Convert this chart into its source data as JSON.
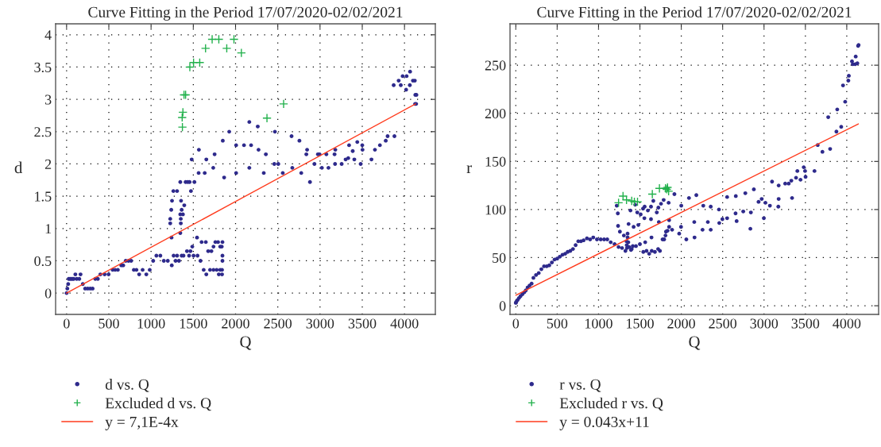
{
  "chart_data": [
    {
      "type": "scatter",
      "title": "Curve Fitting in the Period 17/07/2020-02/02/2021",
      "xlabel": "Q",
      "ylabel": "d",
      "xlim": [
        -130,
        4365
      ],
      "ylim": [
        -0.33,
        4.17
      ],
      "xticks": [
        0,
        500,
        1000,
        1500,
        2000,
        2500,
        3000,
        3500,
        4000
      ],
      "yticks": [
        0,
        0.5,
        1,
        1.5,
        2,
        2.5,
        3,
        3.5,
        4
      ],
      "grid": true,
      "legend": "bottom",
      "series": [
        {
          "name": "d vs. Q",
          "marker": "circle",
          "color": "#2e2a8c",
          "x": [
            0,
            9,
            19,
            25,
            40,
            55,
            70,
            85,
            104,
            120,
            150,
            165,
            192,
            220,
            250,
            280,
            308,
            340,
            370,
            400,
            450,
            497,
            545,
            575,
            607,
            648,
            670,
            700,
            733,
            764,
            796,
            827,
            859,
            900,
            944,
            984,
            1025,
            1063,
            1110,
            1151,
            1198,
            1245,
            1267,
            1290,
            1308,
            1330,
            1362,
            1384,
            1425,
            1450,
            1466,
            1488,
            1503,
            1550,
            1544,
            1585,
            1598,
            1648,
            1623,
            1654,
            1676,
            1714,
            1698,
            1739,
            1777,
            1739,
            1761,
            1793,
            1802,
            1818,
            1837,
            1818,
            1840,
            1840,
            1845,
            1845,
            1845,
            1227,
            1227,
            1239,
            1248,
            1264,
            1308,
            1242,
            1346,
            1352,
            1352,
            1346,
            1377,
            1362,
            1355,
            1393,
            1346,
            1409,
            1434,
            1456,
            1472,
            1513,
            1481,
            1563,
            1566,
            1635,
            1654,
            1736,
            1752,
            1849,
            1865,
            1925,
            2007,
            2007,
            2100,
            2163,
            2184,
            2163,
            2263,
            2272,
            2334,
            2359,
            2466,
            2459,
            2506,
            2559,
            2663,
            2672,
            2756,
            2778,
            2847,
            2838,
            2881,
            2934,
            2975,
            2994,
            3022,
            3075,
            3100,
            3172,
            3181,
            3178,
            3256,
            3303,
            3334,
            3344,
            3387,
            3406,
            3441,
            3481,
            3500,
            3503,
            3609,
            3650,
            3709,
            3778,
            3800,
            3881,
            3872,
            3931,
            3956,
            3978,
            4025,
            4019,
            4066,
            4063,
            4100,
            4122,
            4128,
            4141,
            4125,
            4138
          ],
          "values": [
            0,
            0.07,
            0.14,
            0.22,
            0.22,
            0.22,
            0.22,
            0.22,
            0.29,
            0.22,
            0.22,
            0.29,
            0.14,
            0.07,
            0.07,
            0.07,
            0.07,
            0.22,
            0.22,
            0.29,
            0.29,
            0.29,
            0.36,
            0.36,
            0.36,
            0.43,
            0.43,
            0.5,
            0.5,
            0.5,
            0.36,
            0.36,
            0.29,
            0.36,
            0.29,
            0.36,
            0.5,
            0.58,
            0.58,
            0.5,
            0.5,
            0.43,
            0.58,
            0.5,
            0.58,
            0.5,
            0.58,
            0.58,
            0.65,
            0.58,
            0.65,
            0.72,
            0.58,
            0.58,
            0.86,
            0.5,
            0.79,
            0.79,
            0.36,
            0.29,
            0.65,
            0.65,
            0.36,
            0.36,
            0.36,
            0.72,
            0.79,
            0.79,
            0.29,
            0.72,
            0.72,
            0.36,
            0.36,
            0.29,
            0.79,
            0.58,
            0.5,
            1.15,
            1.08,
            1.29,
            1.43,
            1.58,
            1.58,
            0.86,
            0.93,
            1.08,
            1.15,
            1.22,
            1.22,
            1.29,
            1.43,
            1.36,
            1.72,
            1.72,
            1.72,
            1.72,
            1.58,
            1.72,
            2.07,
            1.86,
            2.22,
            1.86,
            2.07,
            1.94,
            2.15,
            2.36,
            1.79,
            2.5,
            2.29,
            1.86,
            2.29,
            2.65,
            2.29,
            1.94,
            2.58,
            2.22,
            1.86,
            2.15,
            2.5,
            2.0,
            2.0,
            1.86,
            2.43,
            1.94,
            2.36,
            1.86,
            2.22,
            2.15,
            1.72,
            2.0,
            2.15,
            2.15,
            1.94,
            2.15,
            1.94,
            2.15,
            2.22,
            2.0,
            2.0,
            2.07,
            2.09,
            2.29,
            2.2,
            2.07,
            2.34,
            2.0,
            2.29,
            2.22,
            2.07,
            2.22,
            2.29,
            2.36,
            2.43,
            2.43,
            3.22,
            3.29,
            3.22,
            3.36,
            3.36,
            3.15,
            3.43,
            3.22,
            3.29,
            3.29,
            3.07,
            3.07,
            2.93,
            2.93
          ]
        },
        {
          "name": "Excluded d vs. Q",
          "marker": "cross",
          "color": "#22b14c",
          "x": [
            1371,
            1368,
            1377,
            1390,
            1409,
            1459,
            1503,
            1576,
            1645,
            1723,
            1802,
            1896,
            1981,
            2069,
            2372,
            2569
          ],
          "values": [
            2.57,
            2.72,
            2.8,
            3.07,
            3.07,
            3.5,
            3.57,
            3.57,
            3.79,
            3.93,
            3.93,
            3.79,
            3.93,
            3.72,
            2.71,
            2.93
          ]
        },
        {
          "name": "y = 7,1E-4x",
          "type": "line",
          "marker": "none",
          "color": "#ff3c1e",
          "x": [
            0,
            4131
          ],
          "values": [
            0,
            2.93
          ]
        }
      ]
    },
    {
      "type": "scatter",
      "title": "Curve Fitting in the Period 17/07/2020-02/02/2021",
      "xlabel": "Q",
      "ylabel": "r",
      "xlim": [
        -70,
        4385
      ],
      "ylim": [
        -9,
        293
      ],
      "xticks": [
        0,
        500,
        1000,
        1500,
        2000,
        2500,
        3000,
        3500,
        4000
      ],
      "yticks": [
        0,
        50,
        100,
        150,
        200,
        250
      ],
      "grid": true,
      "legend": "bottom",
      "series": [
        {
          "name": "r vs. Q",
          "marker": "circle",
          "color": "#2e2a8c",
          "x": [
            0,
            6,
            22,
            38,
            57,
            80,
            102,
            121,
            143,
            166,
            191,
            213,
            245,
            277,
            309,
            341,
            373,
            404,
            436,
            468,
            500,
            532,
            564,
            596,
            627,
            659,
            691,
            723,
            755,
            787,
            819,
            860,
            898,
            936,
            981,
            1026,
            1067,
            1105,
            1147,
            1194,
            1220,
            1233,
            1236,
            1258,
            1242,
            1284,
            1306,
            1325,
            1338,
            1351,
            1351,
            1360,
            1341,
            1344,
            1363,
            1370,
            1392,
            1401,
            1414,
            1424,
            1386,
            1443,
            1452,
            1468,
            1481,
            1509,
            1500,
            1538,
            1557,
            1554,
            1564,
            1541,
            1580,
            1596,
            1612,
            1634,
            1634,
            1643,
            1662,
            1640,
            1681,
            1704,
            1720,
            1723,
            1729,
            1742,
            1755,
            1774,
            1787,
            1793,
            1809,
            1815,
            1834,
            1847,
            1853,
            1853,
            1889,
            1917,
            1975,
            2000,
            1997,
            2061,
            2093,
            2157,
            2160,
            2182,
            2257,
            2266,
            2321,
            2356,
            2356,
            2455,
            2459,
            2497,
            2554,
            2554,
            2656,
            2659,
            2669,
            2749,
            2774,
            2841,
            2835,
            2877,
            2934,
            2972,
            2998,
            3017,
            3071,
            3097,
            3173,
            3177,
            3177,
            3256,
            3298,
            3330,
            3339,
            3387,
            3403,
            3441,
            3480,
            3496,
            3502,
            3610,
            3649,
            3706,
            3776,
            3799,
            3875,
            3885,
            3933,
            3955,
            3981,
            4019,
            4025,
            4063,
            4073,
            4102,
            4128,
            4108,
            4137,
            4143
          ],
          "values": [
            3,
            4,
            6,
            8,
            10,
            12,
            14,
            16,
            19,
            21,
            23,
            29,
            32,
            34,
            38,
            41,
            41,
            42,
            45,
            48,
            49,
            51,
            53,
            54,
            56,
            57,
            59,
            63,
            67,
            67,
            68,
            70,
            69,
            71,
            69,
            69,
            69,
            69,
            66,
            64,
            104,
            96,
            83,
            77,
            61,
            60,
            73,
            57,
            67,
            75,
            71,
            66,
            63,
            60,
            85,
            61,
            58,
            59,
            62,
            82,
            99,
            105,
            62,
            97,
            84,
            95,
            64,
            101,
            103,
            91,
            66,
            56,
            57,
            99,
            54,
            103,
            90,
            57,
            109,
            71,
            56,
            97,
            59,
            102,
            87,
            57,
            106,
            69,
            110,
            69,
            73,
            77,
            78,
            107,
            89,
            82,
            79,
            116,
            75,
            104,
            82,
            69,
            112,
            87,
            71,
            115,
            79,
            104,
            87,
            103,
            79,
            100,
            86,
            90,
            91,
            113,
            96,
            114,
            88,
            98,
            117,
            97,
            80,
            121,
            108,
            111,
            91,
            107,
            104,
            129,
            103,
            125,
            111,
            127,
            127,
            130,
            112,
            133,
            140,
            131,
            144,
            140,
            134,
            140,
            167,
            160,
            196,
            163,
            181,
            204,
            186,
            229,
            212,
            234,
            239,
            254,
            251,
            251,
            252,
            259,
            270,
            271
          ]
        },
        {
          "name": "Excluded r vs. Q",
          "marker": "cross",
          "color": "#22b14c",
          "x": [
            1242,
            1296,
            1338,
            1401,
            1433,
            1471,
            1650,
            1736,
            1809,
            1834,
            1847,
            1825
          ],
          "values": [
            107,
            114,
            110,
            109,
            108,
            108,
            116,
            122,
            122,
            123,
            119,
            121
          ]
        },
        {
          "name": "y = 0.043x+11",
          "type": "line",
          "marker": "none",
          "color": "#ff3c1e",
          "x": [
            0,
            4140
          ],
          "values": [
            11,
            189
          ]
        }
      ]
    }
  ]
}
